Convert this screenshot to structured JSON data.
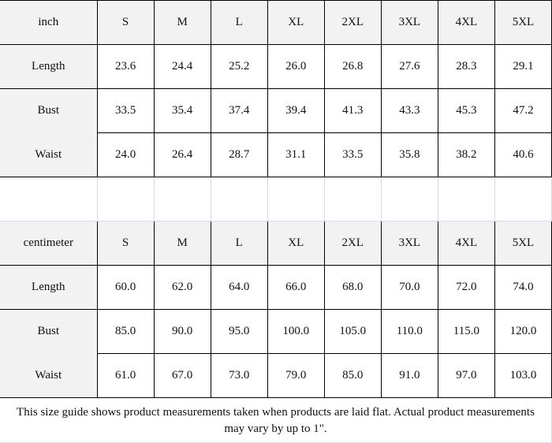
{
  "tables": [
    {
      "unit": "inch",
      "sizes": [
        "S",
        "M",
        "L",
        "XL",
        "2XL",
        "3XL",
        "4XL",
        "5XL"
      ],
      "rows": [
        {
          "label": "Length",
          "values": [
            "23.6",
            "24.4",
            "25.2",
            "26.0",
            "26.8",
            "27.6",
            "28.3",
            "29.1"
          ]
        },
        {
          "label": "Bust",
          "values": [
            "33.5",
            "35.4",
            "37.4",
            "39.4",
            "41.3",
            "43.3",
            "45.3",
            "47.2"
          ]
        },
        {
          "label": "Waist",
          "values": [
            "24.0",
            "26.4",
            "28.7",
            "31.1",
            "33.5",
            "35.8",
            "38.2",
            "40.6"
          ]
        }
      ]
    },
    {
      "unit": "centimeter",
      "sizes": [
        "S",
        "M",
        "L",
        "XL",
        "2XL",
        "3XL",
        "4XL",
        "5XL"
      ],
      "rows": [
        {
          "label": "Length",
          "values": [
            "60.0",
            "62.0",
            "64.0",
            "66.0",
            "68.0",
            "70.0",
            "72.0",
            "74.0"
          ]
        },
        {
          "label": "Bust",
          "values": [
            "85.0",
            "90.0",
            "95.0",
            "100.0",
            "105.0",
            "110.0",
            "115.0",
            "120.0"
          ]
        },
        {
          "label": "Waist",
          "values": [
            "61.0",
            "67.0",
            "73.0",
            "79.0",
            "85.0",
            "91.0",
            "97.0",
            "103.0"
          ]
        }
      ]
    }
  ],
  "note": "This size guide shows product measurements taken when products are laid flat. Actual product measurements may vary by up to 1\"."
}
